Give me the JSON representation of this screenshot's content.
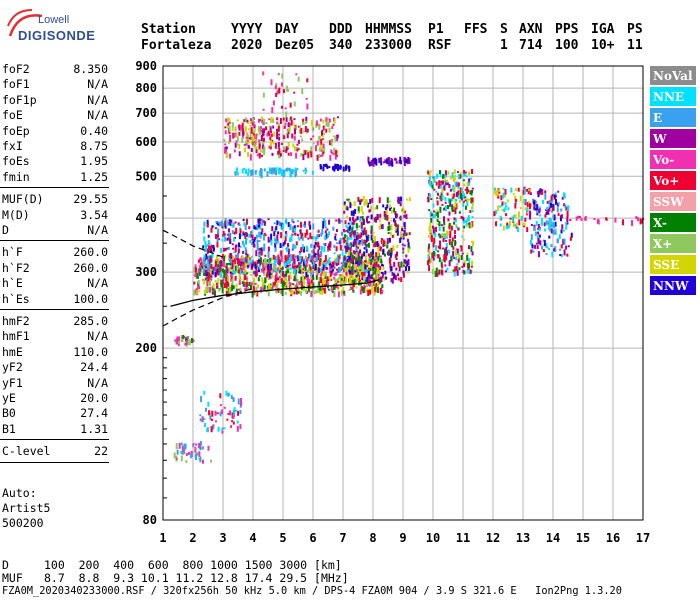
{
  "logo": {
    "line1": "Lowell",
    "line2": "DIGISONDE"
  },
  "header": {
    "labels": [
      "Station",
      "YYYY",
      "DAY",
      "DDD",
      "HHMMSS",
      "P1",
      "FFS",
      "S",
      "AXN",
      "PPS",
      "IGA",
      "PS"
    ],
    "values": [
      "Fortaleza",
      "2020",
      "Dez05",
      "340",
      "233000",
      "RSF",
      "1",
      "714",
      "100",
      "10+",
      "11"
    ]
  },
  "params": {
    "group1": [
      {
        "name": "foF2",
        "value": "8.350"
      },
      {
        "name": "foF1",
        "value": "N/A"
      },
      {
        "name": "foF1p",
        "value": "N/A"
      },
      {
        "name": "foE",
        "value": "N/A"
      },
      {
        "name": "foEp",
        "value": "0.40"
      },
      {
        "name": "fxI",
        "value": "8.75"
      },
      {
        "name": "foEs",
        "value": "1.95"
      },
      {
        "name": "fmin",
        "value": "1.25"
      }
    ],
    "group2": [
      {
        "name": "MUF(D)",
        "value": "29.55"
      },
      {
        "name": "M(D)",
        "value": "3.54"
      },
      {
        "name": "D",
        "value": "N/A"
      }
    ],
    "group3": [
      {
        "name": "h`F",
        "value": "260.0"
      },
      {
        "name": "h`F2",
        "value": "260.0"
      },
      {
        "name": "h`E",
        "value": "N/A"
      },
      {
        "name": "h`Es",
        "value": "100.0"
      }
    ],
    "group4": [
      {
        "name": "hmF2",
        "value": "285.0"
      },
      {
        "name": "hmF1",
        "value": "N/A"
      },
      {
        "name": "hmE",
        "value": "110.0"
      },
      {
        "name": "yF2",
        "value": "24.4"
      },
      {
        "name": "yF1",
        "value": "N/A"
      },
      {
        "name": "yE",
        "value": "20.0"
      },
      {
        "name": "B0",
        "value": "27.4"
      },
      {
        "name": "B1",
        "value": "1.31"
      }
    ],
    "group5": [
      {
        "name": "C-level",
        "value": "22"
      }
    ]
  },
  "autoscale": {
    "line1": "Auto:",
    "line2": "Artist5",
    "line3": "500200"
  },
  "legend": [
    {
      "label": "NoVal",
      "color": "#8c8c8c"
    },
    {
      "label": "NNE",
      "color": "#00e0ff"
    },
    {
      "label": "E",
      "color": "#3aa0f0"
    },
    {
      "label": "W",
      "color": "#a000a0"
    },
    {
      "label": "Vo-",
      "color": "#f030b0"
    },
    {
      "label": "Vo+",
      "color": "#ee0033"
    },
    {
      "label": "SSW",
      "color": "#f4a0a8"
    },
    {
      "label": "X-",
      "color": "#008000"
    },
    {
      "label": "X+",
      "color": "#90c860"
    },
    {
      "label": "SSE",
      "color": "#d4d400"
    },
    {
      "label": "NNW",
      "color": "#2000d8"
    }
  ],
  "footer": {
    "d_label": "D",
    "d_values": "100  200  400  600  800 1000 1500 3000 [km]",
    "muf_label": "MUF",
    "muf_values": "8.7  8.8  9.3 10.1 11.2 12.8 17.4 29.5 [MHz]",
    "file_line": "FZA0M_2020340233000.RSF / 320fx256h 50 kHz 5.0 km / DPS-4 FZA0M 904 / 3.9 S 321.6 E   Ion2Png 1.3.20"
  },
  "chart_data": {
    "type": "scatter",
    "xlim": [
      1,
      17
    ],
    "ylim": [
      80,
      900
    ],
    "x_ticks": [
      "1",
      "2",
      "3",
      "4",
      "5",
      "6",
      "7",
      "8",
      "9",
      "10",
      "11",
      "12",
      "13",
      "14",
      "15",
      "16",
      "17"
    ],
    "y_ticks": [
      "80",
      "200",
      "300",
      "400",
      "500",
      "600",
      "700",
      "800",
      "900"
    ],
    "y_scale": "log",
    "grid": true,
    "legend_position": "right",
    "profile_curve": {
      "x": [
        1.25,
        2,
        3,
        4,
        5,
        6,
        7,
        7.8,
        8.2
      ],
      "y": [
        250,
        258,
        265,
        270,
        274,
        277,
        280,
        283,
        288
      ]
    },
    "profile_dashed_lower": {
      "x": [
        1,
        1.5,
        2,
        3,
        4
      ],
      "y": [
        225,
        235,
        245,
        262,
        275
      ]
    },
    "profile_dashed_upper": {
      "x": [
        1,
        1.5,
        2,
        2.5,
        3
      ],
      "y": [
        375,
        360,
        345,
        335,
        325
      ]
    },
    "echo_regions": [
      {
        "x": [
          1.3,
          2.0
        ],
        "y": [
          205,
          215
        ],
        "colors": [
          "#008000",
          "#90c860",
          "#f030b0"
        ],
        "n": 25
      },
      {
        "x": [
          1.3,
          2.6
        ],
        "y": [
          110,
          122
        ],
        "colors": [
          "#f030b0",
          "#90c860",
          "#3aa0f0"
        ],
        "n": 40
      },
      {
        "x": [
          2.2,
          3.6
        ],
        "y": [
          130,
          160
        ],
        "colors": [
          "#ee0033",
          "#3aa0f0",
          "#f030b0",
          "#00e0ff"
        ],
        "n": 60
      },
      {
        "x": [
          2.0,
          8.3
        ],
        "y": [
          270,
          330
        ],
        "colors": [
          "#ee0033",
          "#008000",
          "#d4d400",
          "#90c860",
          "#f030b0"
        ],
        "n": 900
      },
      {
        "x": [
          2.3,
          7.8
        ],
        "y": [
          300,
          400
        ],
        "colors": [
          "#3aa0f0",
          "#00e0ff",
          "#ee0033",
          "#a000a0",
          "#2000d8"
        ],
        "n": 600
      },
      {
        "x": [
          7.0,
          9.2
        ],
        "y": [
          290,
          450
        ],
        "colors": [
          "#ee0033",
          "#a000a0",
          "#008000",
          "#2000d8",
          "#d4d400"
        ],
        "n": 350
      },
      {
        "x": [
          9.8,
          11.3
        ],
        "y": [
          300,
          520
        ],
        "colors": [
          "#00e0ff",
          "#d4d400",
          "#ee0033",
          "#a000a0",
          "#008000"
        ],
        "n": 350
      },
      {
        "x": [
          12.0,
          13.2
        ],
        "y": [
          380,
          480
        ],
        "colors": [
          "#d4d400",
          "#ee0033",
          "#00e0ff"
        ],
        "n": 90
      },
      {
        "x": [
          13.2,
          14.6
        ],
        "y": [
          330,
          470
        ],
        "colors": [
          "#00e0ff",
          "#a000a0",
          "#ee0033",
          "#2000d8",
          "#3aa0f0"
        ],
        "n": 160
      },
      {
        "x": [
          3.0,
          6.8
        ],
        "y": [
          560,
          690
        ],
        "colors": [
          "#ee0033",
          "#d4d400",
          "#90c860",
          "#f030b0",
          "#a000a0"
        ],
        "n": 320
      },
      {
        "x": [
          3.3,
          6.0
        ],
        "y": [
          510,
          525
        ],
        "colors": [
          "#3aa0f0",
          "#00e0ff"
        ],
        "n": 70
      },
      {
        "x": [
          6.2,
          7.2
        ],
        "y": [
          525,
          535
        ],
        "colors": [
          "#2000d8"
        ],
        "n": 30
      },
      {
        "x": [
          7.8,
          9.2
        ],
        "y": [
          540,
          555
        ],
        "colors": [
          "#2000d8",
          "#a000a0"
        ],
        "n": 50
      },
      {
        "x": [
          4.3,
          5.8
        ],
        "y": [
          700,
          880
        ],
        "colors": [
          "#f030b0",
          "#ee0033",
          "#90c860"
        ],
        "n": 30
      },
      {
        "x": [
          14.5,
          17.0
        ],
        "y": [
          395,
          405
        ],
        "colors": [
          "#ee0033",
          "#f030b0"
        ],
        "n": 20
      }
    ]
  }
}
